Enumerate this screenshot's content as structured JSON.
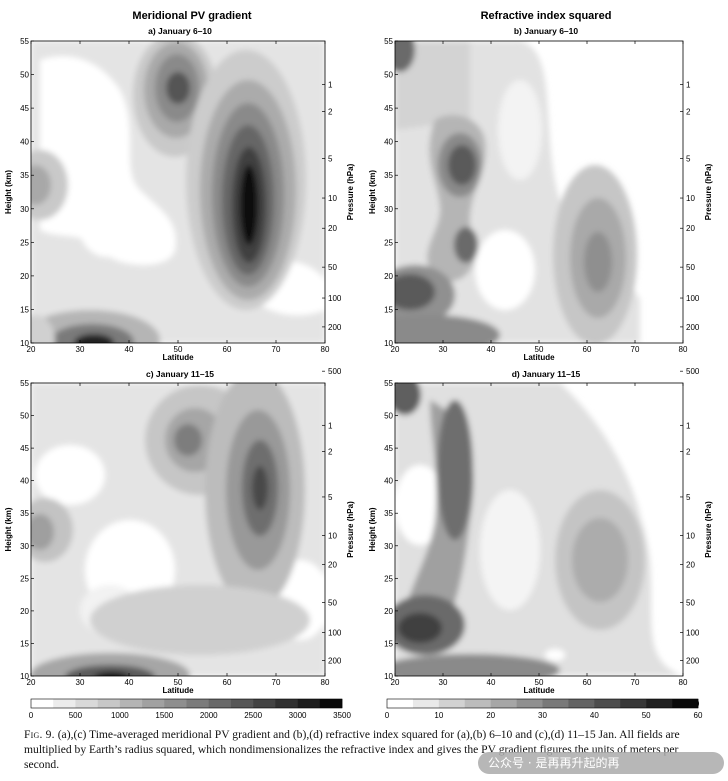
{
  "figure": {
    "column_titles": [
      "Meridional PV gradient",
      "Refractive index squared"
    ],
    "panels": [
      {
        "id": "a",
        "label": "a) January 6–10"
      },
      {
        "id": "b",
        "label": "b) January 6–10"
      },
      {
        "id": "c",
        "label": "c) January 11–15"
      },
      {
        "id": "d",
        "label": "d) January 11–15"
      }
    ],
    "x_label": "Latitude",
    "y_label_left": "Height (km)",
    "y_label_right": "Pressure (hPa)",
    "x_ticks": [
      "20",
      "30",
      "40",
      "50",
      "60",
      "70",
      "80"
    ],
    "height_ticks": [
      "10",
      "15",
      "20",
      "25",
      "30",
      "35",
      "40",
      "45",
      "50",
      "55"
    ],
    "pressure_ticks": [
      {
        "label": "1",
        "km": 48.5
      },
      {
        "label": "2",
        "km": 44.5
      },
      {
        "label": "5",
        "km": 37.5
      },
      {
        "label": "10",
        "km": 31.6
      },
      {
        "label": "20",
        "km": 27.1
      },
      {
        "label": "50",
        "km": 21.3
      },
      {
        "label": "100",
        "km": 16.7
      },
      {
        "label": "200",
        "km": 12.4
      },
      {
        "label": "500",
        "km": 5.8
      }
    ],
    "colorbar_left": {
      "ticks": [
        "0",
        "500",
        "1000",
        "1500",
        "2000",
        "2500",
        "3000",
        "3500"
      ],
      "levels": 14
    },
    "colorbar_right": {
      "ticks": [
        "0",
        "10",
        "20",
        "30",
        "40",
        "50",
        "60"
      ],
      "levels": 12
    }
  },
  "caption": {
    "fig_number": "Fig. 9.",
    "text": " (a),(c) Time-averaged meridional PV gradient and (b),(d) refractive index squared for (a),(b) 6–10 and (c),(d) 11–15 Jan. All fields are multiplied by Earth’s radius squared, which nondimensionalizes the refractive index and gives the PV gradient figures the units of meters per second."
  },
  "watermark": {
    "text": "公众号 · 是再再升起的再"
  },
  "chart_data": [
    {
      "type": "heatmap",
      "panel": "a",
      "title": "a) January 6–10",
      "xlabel": "Latitude",
      "ylabel": "Height (km)",
      "xlim": [
        20,
        80
      ],
      "ylim": [
        10,
        55
      ],
      "zlim": [
        0,
        3500
      ],
      "features": [
        {
          "lat": 63,
          "km": 31,
          "value": 3400
        },
        {
          "lat": 49,
          "km": 47,
          "value": 2600
        },
        {
          "lat": 32,
          "km": 10.5,
          "value": 3000
        },
        {
          "lat": 21,
          "km": 32,
          "value": 1000
        }
      ]
    },
    {
      "type": "heatmap",
      "panel": "b",
      "title": "b) January 6–10",
      "xlabel": "Latitude",
      "ylabel": "Height (km)",
      "xlim": [
        20,
        80
      ],
      "ylim": [
        10,
        55
      ],
      "zlim": [
        0,
        60
      ],
      "features": [
        {
          "lat": 32,
          "km": 36,
          "value": 42
        },
        {
          "lat": 34,
          "km": 24,
          "value": 40
        },
        {
          "lat": 24,
          "km": 18,
          "value": 48
        },
        {
          "lat": 62,
          "km": 22,
          "value": 30
        },
        {
          "lat": 20,
          "km": 54,
          "value": 45
        }
      ]
    },
    {
      "type": "heatmap",
      "panel": "c",
      "title": "c) January 11–15",
      "xlabel": "Latitude",
      "ylabel": "Height (km)",
      "xlim": [
        20,
        80
      ],
      "ylim": [
        10,
        55
      ],
      "zlim": [
        0,
        3500
      ],
      "features": [
        {
          "lat": 65,
          "km": 37,
          "value": 2500
        },
        {
          "lat": 52,
          "km": 46,
          "value": 2000
        },
        {
          "lat": 36,
          "km": 10.5,
          "value": 3200
        },
        {
          "lat": 22,
          "km": 33,
          "value": 1000
        }
      ]
    },
    {
      "type": "heatmap",
      "panel": "d",
      "title": "d) January 11–15",
      "xlabel": "Latitude",
      "ylabel": "Height (km)",
      "xlim": [
        20,
        80
      ],
      "ylim": [
        10,
        55
      ],
      "zlim": [
        0,
        60
      ],
      "features": [
        {
          "lat": 33,
          "km": 40,
          "value": 42
        },
        {
          "lat": 27,
          "km": 18,
          "value": 48
        },
        {
          "lat": 63,
          "km": 30,
          "value": 25
        },
        {
          "lat": 21,
          "km": 54,
          "value": 40
        }
      ]
    }
  ]
}
